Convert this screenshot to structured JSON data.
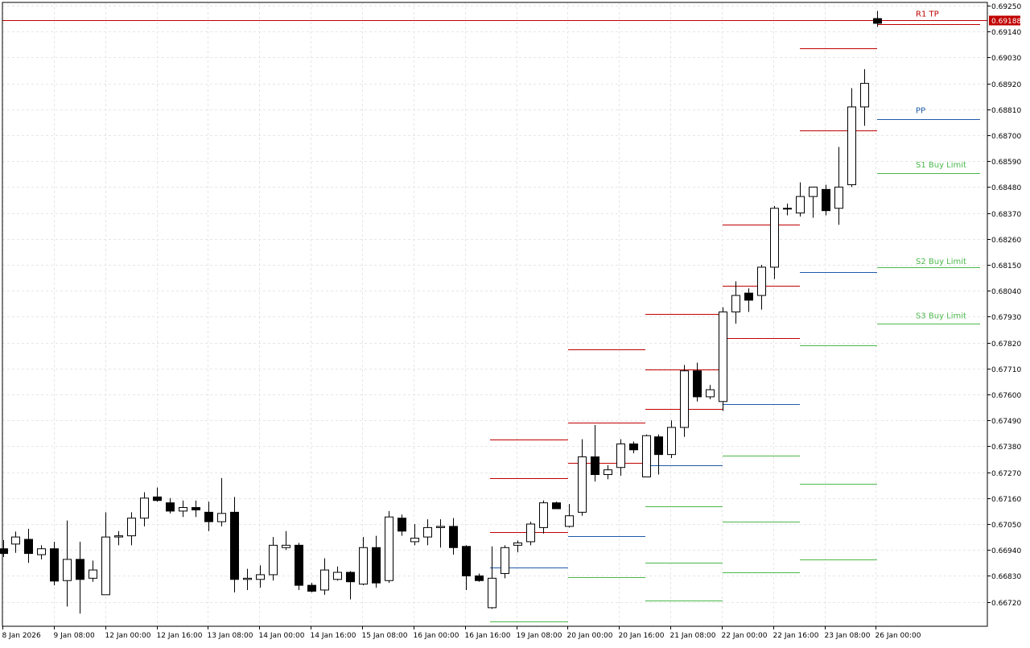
{
  "chart_data": {
    "type": "candlestick",
    "title": "",
    "xlabel": "",
    "ylabel": "",
    "ylim": [
      0.6663,
      0.6928
    ],
    "y_ticks": [
      "0.69250",
      "0.69140",
      "0.69030",
      "0.68920",
      "0.68810",
      "0.68700",
      "0.68590",
      "0.68480",
      "0.68370",
      "0.68260",
      "0.68150",
      "0.68040",
      "0.67930",
      "0.67820",
      "0.67710",
      "0.67600",
      "0.67490",
      "0.67380",
      "0.67270",
      "0.67160",
      "0.67050",
      "0.66940",
      "0.66830",
      "0.66720"
    ],
    "x_ticks": [
      "8 Jan 2026",
      "9 Jan 08:00",
      "12 Jan 00:00",
      "12 Jan 16:00",
      "13 Jan 08:00",
      "14 Jan 00:00",
      "14 Jan 16:00",
      "15 Jan 08:00",
      "16 Jan 00:00",
      "16 Jan 16:00",
      "19 Jan 08:00",
      "20 Jan 00:00",
      "20 Jan 16:00",
      "21 Jan 08:00",
      "22 Jan 00:00",
      "22 Jan 16:00",
      "23 Jan 08:00",
      "26 Jan 00:00"
    ],
    "grid": true,
    "candles": [
      {
        "o": 0.66945,
        "h": 0.66982,
        "l": 0.6691,
        "c": 0.66925
      },
      {
        "o": 0.66965,
        "h": 0.67018,
        "l": 0.66928,
        "c": 0.66995
      },
      {
        "o": 0.66985,
        "h": 0.6703,
        "l": 0.66885,
        "c": 0.66925
      },
      {
        "o": 0.6692,
        "h": 0.6696,
        "l": 0.669,
        "c": 0.66945
      },
      {
        "o": 0.66945,
        "h": 0.66975,
        "l": 0.6679,
        "c": 0.66808
      },
      {
        "o": 0.6681,
        "h": 0.67065,
        "l": 0.667,
        "c": 0.669
      },
      {
        "o": 0.669,
        "h": 0.66975,
        "l": 0.6667,
        "c": 0.66815
      },
      {
        "o": 0.6682,
        "h": 0.66895,
        "l": 0.66805,
        "c": 0.66855
      },
      {
        "o": 0.6675,
        "h": 0.671,
        "l": 0.6675,
        "c": 0.66995
      },
      {
        "o": 0.66995,
        "h": 0.6702,
        "l": 0.6696,
        "c": 0.67
      },
      {
        "o": 0.67,
        "h": 0.671,
        "l": 0.6696,
        "c": 0.67075
      },
      {
        "o": 0.67075,
        "h": 0.67185,
        "l": 0.6704,
        "c": 0.6716
      },
      {
        "o": 0.67165,
        "h": 0.67205,
        "l": 0.67145,
        "c": 0.6715
      },
      {
        "o": 0.6714,
        "h": 0.6716,
        "l": 0.67095,
        "c": 0.67105
      },
      {
        "o": 0.67105,
        "h": 0.6715,
        "l": 0.6708,
        "c": 0.6712
      },
      {
        "o": 0.6712,
        "h": 0.6715,
        "l": 0.6708,
        "c": 0.6711
      },
      {
        "o": 0.671,
        "h": 0.67145,
        "l": 0.6702,
        "c": 0.6706
      },
      {
        "o": 0.6706,
        "h": 0.67245,
        "l": 0.6704,
        "c": 0.67095
      },
      {
        "o": 0.671,
        "h": 0.67165,
        "l": 0.6676,
        "c": 0.66815
      },
      {
        "o": 0.66815,
        "h": 0.6686,
        "l": 0.6677,
        "c": 0.6682
      },
      {
        "o": 0.66815,
        "h": 0.66875,
        "l": 0.6678,
        "c": 0.66835
      },
      {
        "o": 0.66835,
        "h": 0.66995,
        "l": 0.6681,
        "c": 0.6696
      },
      {
        "o": 0.6695,
        "h": 0.6702,
        "l": 0.6694,
        "c": 0.6696
      },
      {
        "o": 0.6696,
        "h": 0.6697,
        "l": 0.6677,
        "c": 0.6679
      },
      {
        "o": 0.6679,
        "h": 0.668,
        "l": 0.6676,
        "c": 0.66765
      },
      {
        "o": 0.6677,
        "h": 0.66905,
        "l": 0.6675,
        "c": 0.66855
      },
      {
        "o": 0.66815,
        "h": 0.6687,
        "l": 0.6681,
        "c": 0.66845
      },
      {
        "o": 0.66845,
        "h": 0.6685,
        "l": 0.6673,
        "c": 0.66805
      },
      {
        "o": 0.66795,
        "h": 0.66995,
        "l": 0.6679,
        "c": 0.6695
      },
      {
        "o": 0.6695,
        "h": 0.67,
        "l": 0.6678,
        "c": 0.668
      },
      {
        "o": 0.6681,
        "h": 0.67105,
        "l": 0.668,
        "c": 0.6708
      },
      {
        "o": 0.67075,
        "h": 0.6709,
        "l": 0.67,
        "c": 0.6702
      },
      {
        "o": 0.66975,
        "h": 0.6705,
        "l": 0.6696,
        "c": 0.6699
      },
      {
        "o": 0.66995,
        "h": 0.6707,
        "l": 0.6696,
        "c": 0.67035
      },
      {
        "o": 0.67035,
        "h": 0.6707,
        "l": 0.6695,
        "c": 0.6704
      },
      {
        "o": 0.6704,
        "h": 0.67075,
        "l": 0.6692,
        "c": 0.6695
      },
      {
        "o": 0.66955,
        "h": 0.6696,
        "l": 0.6677,
        "c": 0.6683
      },
      {
        "o": 0.6683,
        "h": 0.6684,
        "l": 0.66805,
        "c": 0.6681
      },
      {
        "o": 0.66695,
        "h": 0.66955,
        "l": 0.6669,
        "c": 0.6682
      },
      {
        "o": 0.6684,
        "h": 0.6696,
        "l": 0.6682,
        "c": 0.6695
      },
      {
        "o": 0.6696,
        "h": 0.6698,
        "l": 0.6693,
        "c": 0.6697
      },
      {
        "o": 0.66975,
        "h": 0.6706,
        "l": 0.6696,
        "c": 0.6705
      },
      {
        "o": 0.67035,
        "h": 0.6715,
        "l": 0.6701,
        "c": 0.6714
      },
      {
        "o": 0.6714,
        "h": 0.67145,
        "l": 0.67115,
        "c": 0.67115
      },
      {
        "o": 0.6704,
        "h": 0.67135,
        "l": 0.67035,
        "c": 0.67085
      },
      {
        "o": 0.671,
        "h": 0.6741,
        "l": 0.67085,
        "c": 0.67335
      },
      {
        "o": 0.67335,
        "h": 0.6747,
        "l": 0.6723,
        "c": 0.6726
      },
      {
        "o": 0.6726,
        "h": 0.673,
        "l": 0.6724,
        "c": 0.6728
      },
      {
        "o": 0.6729,
        "h": 0.6741,
        "l": 0.67255,
        "c": 0.6739
      },
      {
        "o": 0.6739,
        "h": 0.674,
        "l": 0.6735,
        "c": 0.67365
      },
      {
        "o": 0.6725,
        "h": 0.6743,
        "l": 0.6725,
        "c": 0.67425
      },
      {
        "o": 0.6742,
        "h": 0.6743,
        "l": 0.6726,
        "c": 0.67345
      },
      {
        "o": 0.67345,
        "h": 0.6749,
        "l": 0.6733,
        "c": 0.6746
      },
      {
        "o": 0.6746,
        "h": 0.67725,
        "l": 0.6742,
        "c": 0.677
      },
      {
        "o": 0.677,
        "h": 0.67735,
        "l": 0.6757,
        "c": 0.6759
      },
      {
        "o": 0.6759,
        "h": 0.6764,
        "l": 0.6758,
        "c": 0.6762
      },
      {
        "o": 0.6757,
        "h": 0.6797,
        "l": 0.6753,
        "c": 0.6795
      },
      {
        "o": 0.6795,
        "h": 0.6808,
        "l": 0.679,
        "c": 0.6802
      },
      {
        "o": 0.6803,
        "h": 0.6805,
        "l": 0.6795,
        "c": 0.68
      },
      {
        "o": 0.6802,
        "h": 0.6815,
        "l": 0.6796,
        "c": 0.6814
      },
      {
        "o": 0.6814,
        "h": 0.684,
        "l": 0.6809,
        "c": 0.6839
      },
      {
        "o": 0.6839,
        "h": 0.6841,
        "l": 0.6836,
        "c": 0.6839
      },
      {
        "o": 0.6837,
        "h": 0.685,
        "l": 0.68355,
        "c": 0.6844
      },
      {
        "o": 0.6844,
        "h": 0.6848,
        "l": 0.6835,
        "c": 0.6848
      },
      {
        "o": 0.6847,
        "h": 0.6849,
        "l": 0.6836,
        "c": 0.6838
      },
      {
        "o": 0.6839,
        "h": 0.6865,
        "l": 0.6832,
        "c": 0.6848
      },
      {
        "o": 0.6849,
        "h": 0.689,
        "l": 0.6848,
        "c": 0.6882
      },
      {
        "o": 0.6882,
        "h": 0.6898,
        "l": 0.6874,
        "c": 0.6892
      },
      {
        "o": 0.69195,
        "h": 0.69228,
        "l": 0.6916,
        "c": 0.69175
      }
    ],
    "level_segments": [
      {
        "color": "#c00000",
        "x0": 609,
        "x1": 706,
        "price": 0.6741
      },
      {
        "color": "#c00000",
        "x0": 609,
        "x1": 706,
        "price": 0.67245
      },
      {
        "color": "#c00000",
        "x0": 609,
        "x1": 706,
        "price": 0.67015
      },
      {
        "color": "#1f5aa8",
        "x0": 609,
        "x1": 706,
        "price": 0.66865
      },
      {
        "color": "#4cb84c",
        "x0": 609,
        "x1": 706,
        "price": 0.66635
      },
      {
        "color": "#c00000",
        "x0": 706,
        "x1": 802,
        "price": 0.6779
      },
      {
        "color": "#c00000",
        "x0": 706,
        "x1": 802,
        "price": 0.6748
      },
      {
        "color": "#c00000",
        "x0": 706,
        "x1": 802,
        "price": 0.6731
      },
      {
        "color": "#1f5aa8",
        "x0": 706,
        "x1": 802,
        "price": 0.67
      },
      {
        "color": "#4cb84c",
        "x0": 706,
        "x1": 802,
        "price": 0.66825
      },
      {
        "color": "#c00000",
        "x0": 802,
        "x1": 898,
        "price": 0.6794
      },
      {
        "color": "#c00000",
        "x0": 802,
        "x1": 898,
        "price": 0.67705
      },
      {
        "color": "#c00000",
        "x0": 802,
        "x1": 898,
        "price": 0.6754
      },
      {
        "color": "#1f5aa8",
        "x0": 802,
        "x1": 898,
        "price": 0.673
      },
      {
        "color": "#4cb84c",
        "x0": 802,
        "x1": 898,
        "price": 0.67125
      },
      {
        "color": "#4cb84c",
        "x0": 802,
        "x1": 898,
        "price": 0.66885
      },
      {
        "color": "#4cb84c",
        "x0": 802,
        "x1": 898,
        "price": 0.66725
      },
      {
        "color": "#c00000",
        "x0": 898,
        "x1": 994,
        "price": 0.6832
      },
      {
        "color": "#c00000",
        "x0": 898,
        "x1": 994,
        "price": 0.6806
      },
      {
        "color": "#c00000",
        "x0": 898,
        "x1": 994,
        "price": 0.6784
      },
      {
        "color": "#1f5aa8",
        "x0": 898,
        "x1": 994,
        "price": 0.6756
      },
      {
        "color": "#4cb84c",
        "x0": 898,
        "x1": 994,
        "price": 0.6734
      },
      {
        "color": "#4cb84c",
        "x0": 898,
        "x1": 994,
        "price": 0.6706
      },
      {
        "color": "#4cb84c",
        "x0": 898,
        "x1": 994,
        "price": 0.66845
      },
      {
        "color": "#c00000",
        "x0": 994,
        "x1": 1090,
        "price": 0.6907
      },
      {
        "color": "#c00000",
        "x0": 994,
        "x1": 1090,
        "price": 0.6872
      },
      {
        "color": "#1f5aa8",
        "x0": 994,
        "x1": 1090,
        "price": 0.6812
      },
      {
        "color": "#4cb84c",
        "x0": 994,
        "x1": 1090,
        "price": 0.6781
      },
      {
        "color": "#4cb84c",
        "x0": 994,
        "x1": 1090,
        "price": 0.6722
      },
      {
        "color": "#4cb84c",
        "x0": 994,
        "x1": 1090,
        "price": 0.669
      },
      {
        "color": "#c00000",
        "x0": 1090,
        "x1": 1218,
        "price": 0.6917
      },
      {
        "color": "#1f5aa8",
        "x0": 1090,
        "x1": 1218,
        "price": 0.6877
      },
      {
        "color": "#4cb84c",
        "x0": 1090,
        "x1": 1218,
        "price": 0.6854
      },
      {
        "color": "#4cb84c",
        "x0": 1090,
        "x1": 1218,
        "price": 0.6814
      },
      {
        "color": "#4cb84c",
        "x0": 1090,
        "x1": 1218,
        "price": 0.679
      }
    ],
    "level_labels": [
      {
        "text": "R1 TP",
        "color": "#c00000",
        "x": 1138,
        "price": 0.6921
      },
      {
        "text": "PP",
        "color": "#1f5aa8",
        "x": 1138,
        "price": 0.688
      },
      {
        "text": "S1 Buy Limit",
        "color": "#4cb84c",
        "x": 1138,
        "price": 0.6857
      },
      {
        "text": "S2 Buy Limit",
        "color": "#4cb84c",
        "x": 1138,
        "price": 0.6816
      },
      {
        "text": "S3 Buy Limit",
        "color": "#4cb84c",
        "x": 1138,
        "price": 0.6793
      }
    ],
    "horizontal_line": {
      "price": 0.69188,
      "color": "#c00000"
    },
    "current_price_label": {
      "text": "0.69188",
      "bg_color": "#c00000",
      "text_color": "#ffffff"
    },
    "colors": {
      "bull": "#ffffff",
      "bear": "#000000",
      "outline": "#000000",
      "grid": "#e6e6e6",
      "axis": "#000000"
    }
  }
}
